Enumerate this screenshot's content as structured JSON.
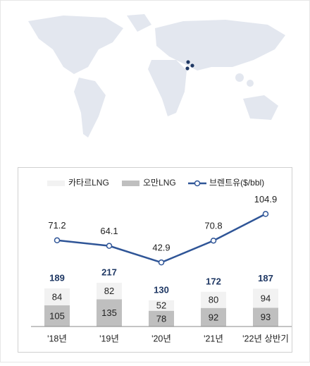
{
  "chart_data": {
    "type": "bar",
    "categories": [
      "'18년",
      "'19년",
      "'20년",
      "'21년",
      "'22년 상반기"
    ],
    "series": [
      {
        "name": "카타르LNG",
        "color": "#f2f2f2",
        "values": [
          84,
          82,
          52,
          80,
          94
        ]
      },
      {
        "name": "오만LNG",
        "color": "#bfbfbf",
        "values": [
          105,
          135,
          78,
          92,
          93
        ]
      },
      {
        "name": "브렌트유($/bbl)",
        "color": "#2f5597",
        "type": "line",
        "axis": "y2",
        "values": [
          71.2,
          64.1,
          42.9,
          70.8,
          104.9
        ]
      }
    ],
    "totals": [
      189,
      217,
      130,
      172,
      187
    ],
    "ylim": [
      0,
      640
    ],
    "y2lim": [
      -39,
      126
    ]
  }
}
